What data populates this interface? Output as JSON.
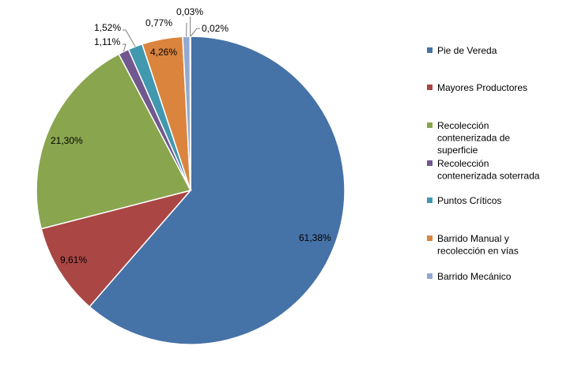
{
  "chart_data": {
    "type": "pie",
    "legend_position": "right",
    "colors_note": "slice colors follow series order",
    "slices": [
      {
        "name": "Pie de Vereda",
        "value": 61.38,
        "label": "61,38%",
        "color": "#4572A7"
      },
      {
        "name": "Mayores Productores",
        "value": 9.61,
        "label": "9,61%",
        "color": "#AA4643"
      },
      {
        "name": "Recolección contenerizada de superficie",
        "value": 21.3,
        "label": "21,30%",
        "color": "#89A54E"
      },
      {
        "name": "Recolección contenerizada soterrada",
        "value": 1.11,
        "label": "1,11%",
        "color": "#71588F"
      },
      {
        "name": "Puntos Críticos",
        "value": 1.52,
        "label": "1,52%",
        "color": "#4198AF"
      },
      {
        "name": "Barrido Manual y recolección en vías",
        "value": 4.26,
        "label": "4,26%",
        "color": "#DB843D"
      },
      {
        "name": "Barrido Mecánico",
        "value": 0.77,
        "label": "0,77%",
        "color": "#93A9CF"
      },
      {
        "name": "",
        "value": 0.03,
        "label": "0,03%",
        "color": "#B9CD96"
      },
      {
        "name": "",
        "value": 0.02,
        "label": "0,02%",
        "color": "#A99BBD"
      }
    ],
    "legend": [
      {
        "lines": [
          "Pie de Vereda"
        ],
        "color": "#4572A7"
      },
      {
        "lines": [
          "Mayores Productores"
        ],
        "color": "#AA4643"
      },
      {
        "lines": [
          "Recolección",
          "contenerizada de",
          "superficie"
        ],
        "color": "#89A54E"
      },
      {
        "lines": [
          "Recolección",
          "contenerizada soterrada"
        ],
        "color": "#71588F"
      },
      {
        "lines": [
          "Puntos Críticos"
        ],
        "color": "#4198AF"
      },
      {
        "lines": [
          "Barrido Manual y",
          "recolección en vías"
        ],
        "color": "#DB843D"
      },
      {
        "lines": [
          "Barrido Mecánico"
        ],
        "color": "#93A9CF"
      }
    ]
  }
}
